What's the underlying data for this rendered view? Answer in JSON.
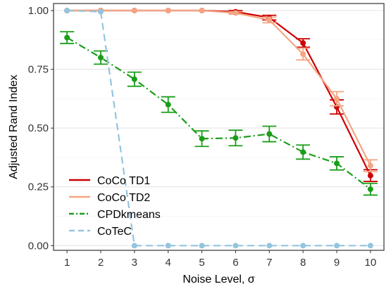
{
  "chart_data": {
    "type": "line",
    "title": "",
    "xlabel": "Noise Level, σ",
    "ylabel": "Adjusted Rand Index",
    "x": [
      1,
      2,
      3,
      4,
      5,
      6,
      7,
      8,
      9,
      10
    ],
    "x_ticks": [
      "1",
      "2",
      "3",
      "4",
      "5",
      "6",
      "7",
      "8",
      "9",
      "10"
    ],
    "y_ticks": [
      "0.00",
      "0.25",
      "0.50",
      "0.75",
      "1.00"
    ],
    "y_tick_values": [
      0,
      0.25,
      0.5,
      0.75,
      1.0
    ],
    "xlim": [
      0.6,
      10.4
    ],
    "ylim": [
      -0.02,
      1.03
    ],
    "grid": true,
    "legend_position": "bottom-left",
    "series": [
      {
        "name": "CoCo TD1",
        "color": "#cc0000",
        "dash": "solid",
        "values": [
          1.0,
          1.0,
          1.0,
          1.0,
          1.0,
          0.995,
          0.97,
          0.862,
          0.59,
          0.298
        ],
        "err": [
          0,
          0,
          0,
          0,
          0,
          0.005,
          0.01,
          0.018,
          0.03,
          0.025
        ]
      },
      {
        "name": "CoCo TD2",
        "color": "#f4a582",
        "dash": "solid",
        "values": [
          1.0,
          1.0,
          1.0,
          1.0,
          1.0,
          0.99,
          0.96,
          0.815,
          0.625,
          0.34
        ],
        "err": [
          0,
          0,
          0,
          0,
          0,
          0.005,
          0.012,
          0.025,
          0.03,
          0.025
        ]
      },
      {
        "name": "CPDkmeans",
        "color": "#1a9e1a",
        "dash": "dashdot",
        "values": [
          0.885,
          0.8,
          0.708,
          0.6,
          0.455,
          0.458,
          0.475,
          0.398,
          0.35,
          0.24
        ],
        "err": [
          0.025,
          0.028,
          0.03,
          0.033,
          0.033,
          0.033,
          0.033,
          0.03,
          0.028,
          0.025
        ]
      },
      {
        "name": "CoTeC",
        "color": "#92c5de",
        "dash": "dashed",
        "values": [
          1.0,
          0.995,
          0.0,
          0.0,
          0.0,
          0.0,
          0.0,
          0.0,
          0.0,
          0.0
        ],
        "err": [
          0,
          0,
          0,
          0,
          0,
          0,
          0,
          0,
          0,
          0
        ]
      }
    ]
  }
}
